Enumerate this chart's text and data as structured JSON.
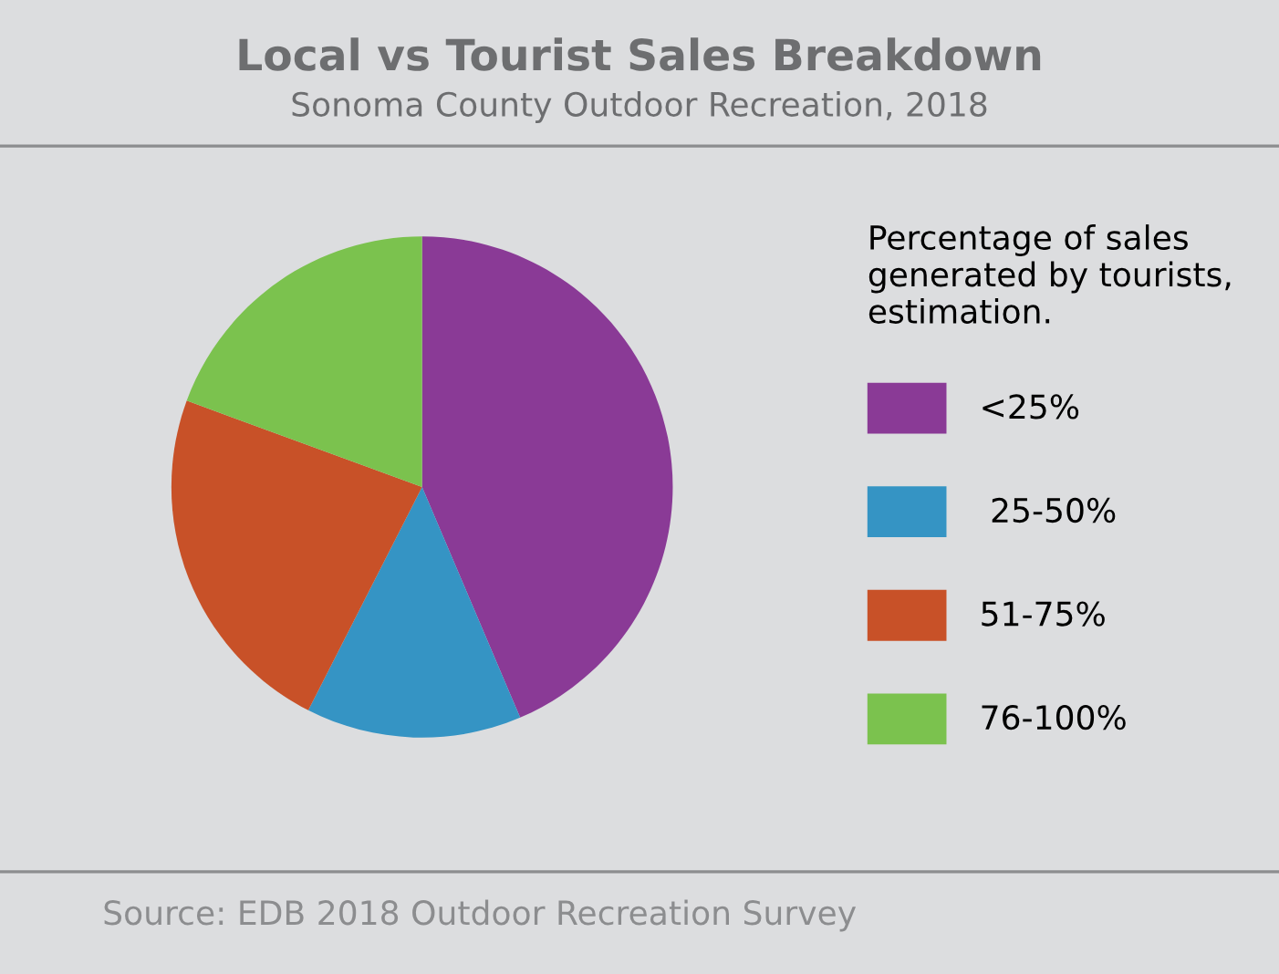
{
  "chart_data": {
    "type": "pie",
    "title": "Local vs Tourist Sales Breakdown",
    "subtitle": "Sonoma County Outdoor Recreation, 2018",
    "legend_title": "Percentage of sales\ngenerated by tourists,\nestimation.",
    "categories": [
      "<25%",
      " 25-50%",
      "51-75%",
      "76-100%"
    ],
    "values": [
      43.6,
      13.9,
      23.1,
      19.4
    ],
    "colors": [
      "#8a3a96",
      "#3594c4",
      "#c85128",
      "#7bc24e"
    ],
    "legend": "right",
    "annotations": [
      "Source: EDB 2018 Outdoor Recreation Survey"
    ]
  }
}
